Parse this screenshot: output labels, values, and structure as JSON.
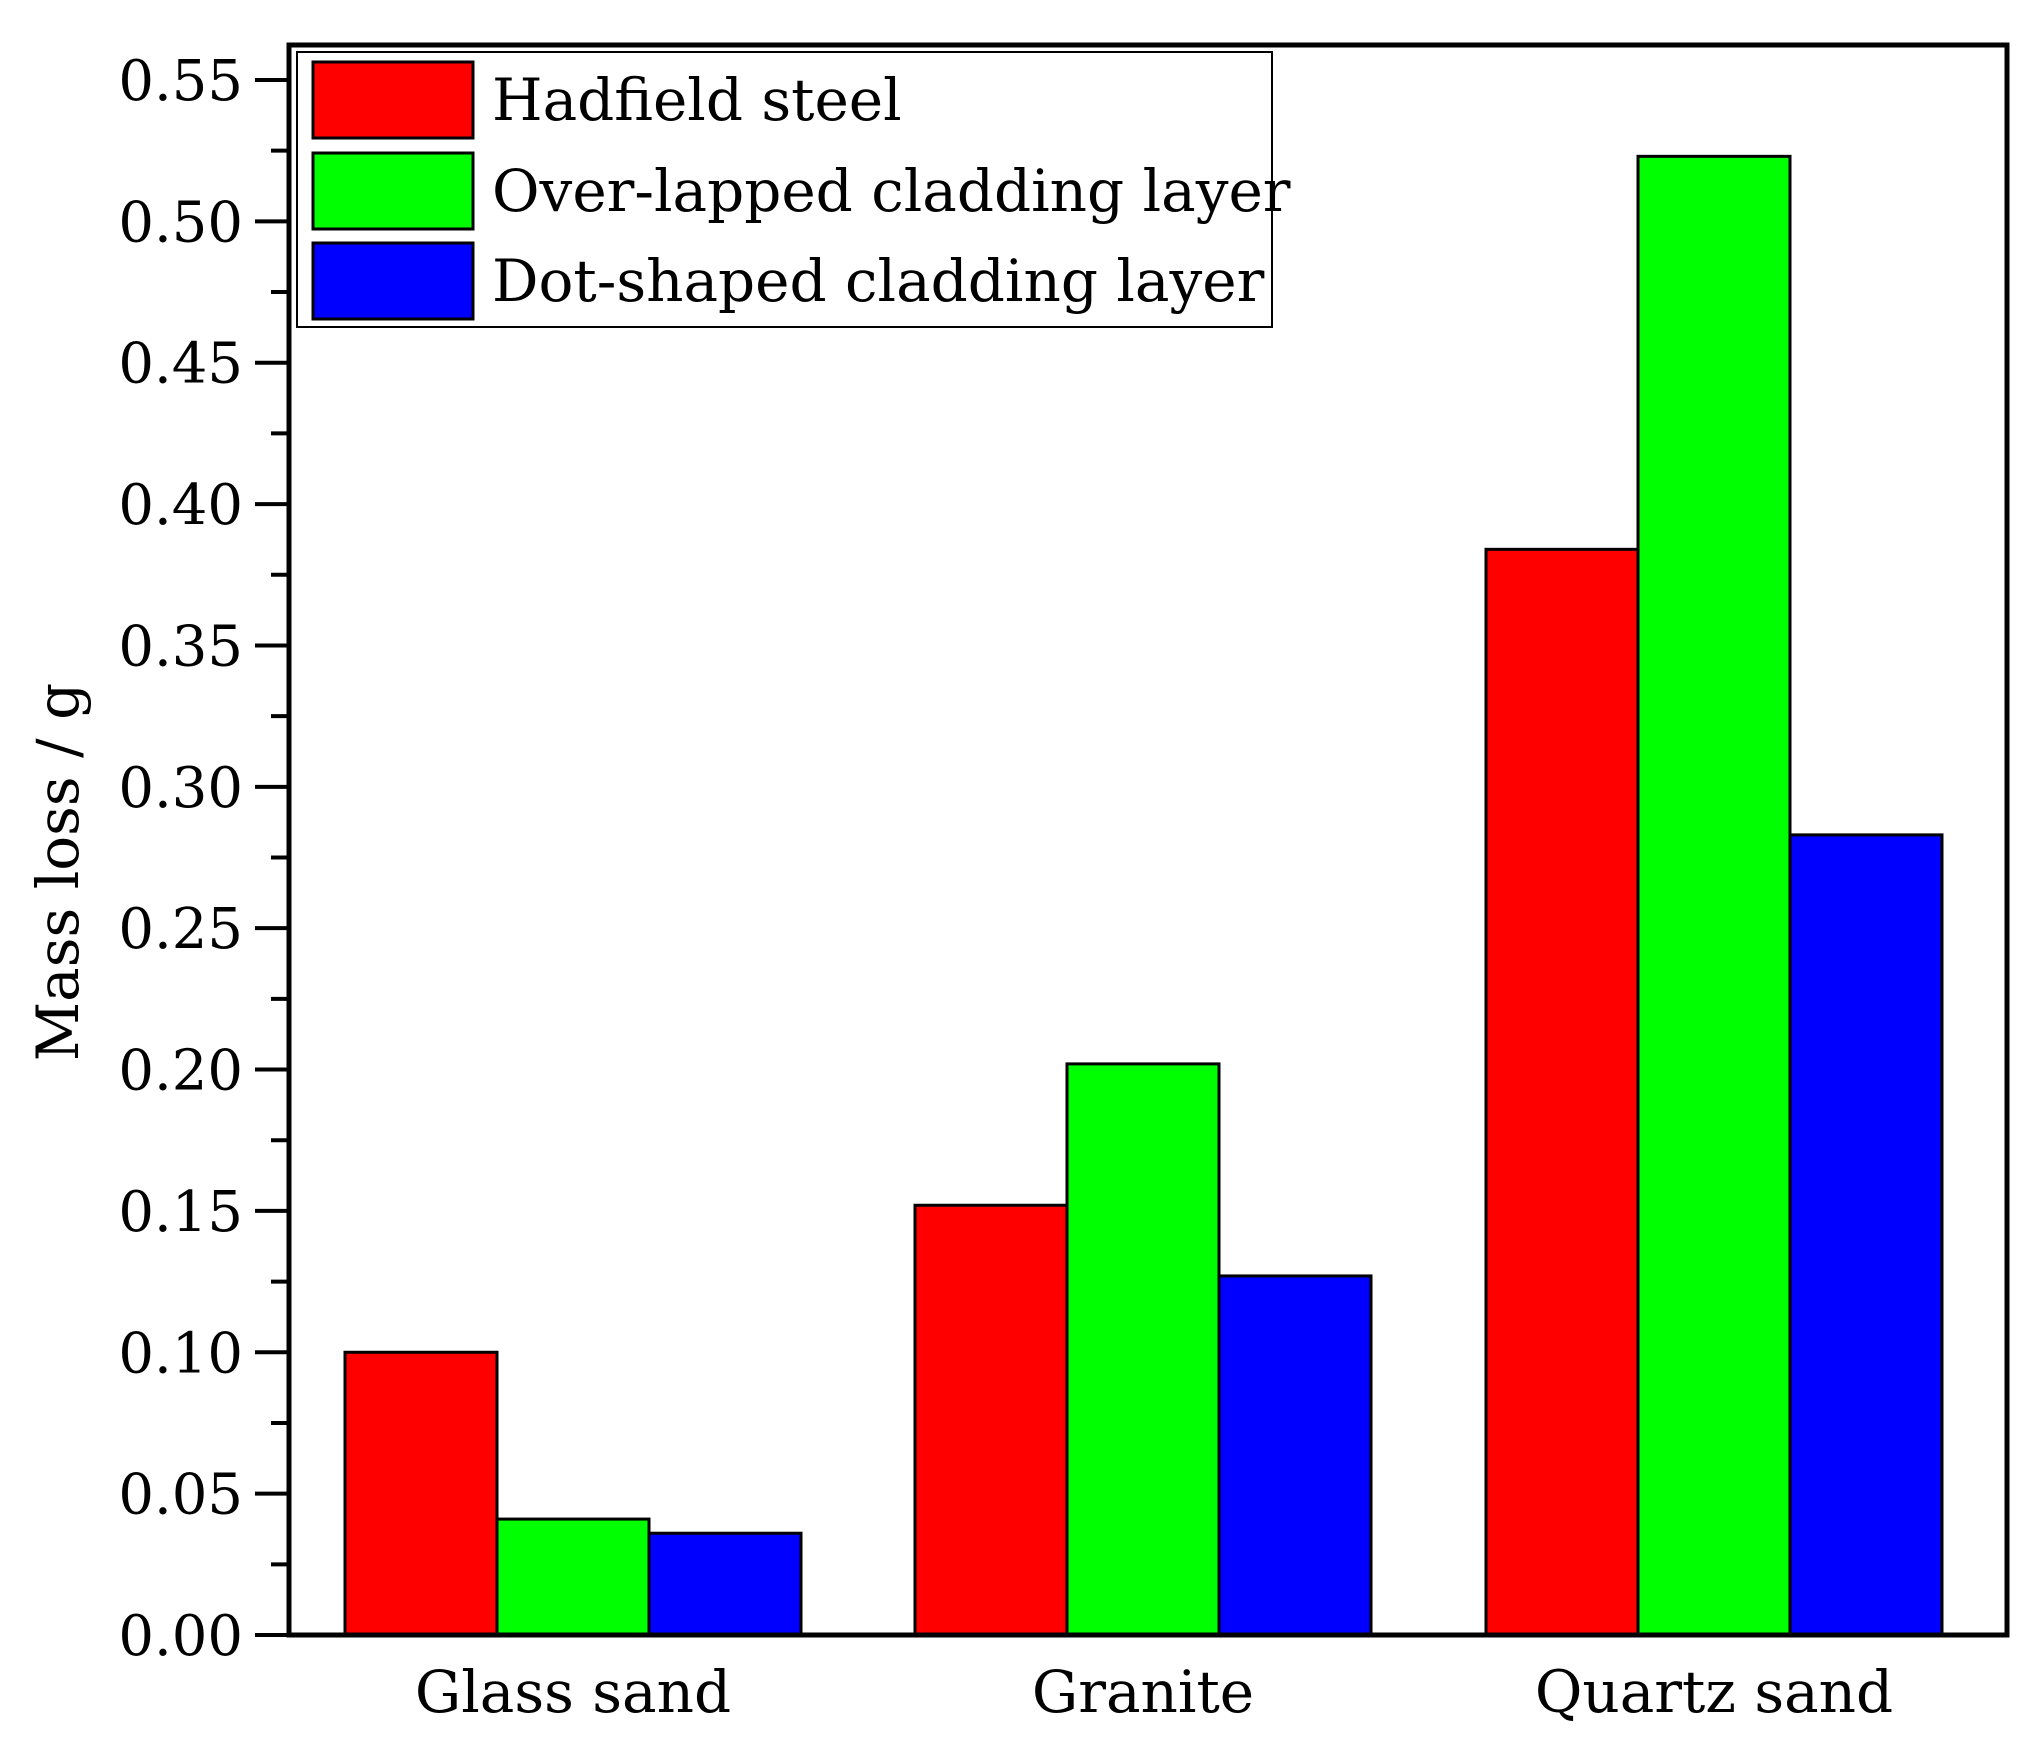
{
  "chart_data": {
    "type": "bar",
    "title": "",
    "xlabel": "",
    "ylabel": "Mass loss / g",
    "ylim": [
      0,
      0.55
    ],
    "yticks": [
      "0.00",
      "0.05",
      "0.10",
      "0.15",
      "0.20",
      "0.25",
      "0.30",
      "0.35",
      "0.40",
      "0.45",
      "0.50",
      "0.55"
    ],
    "categories": [
      "Glass sand",
      "Granite",
      "Quartz sand"
    ],
    "series": [
      {
        "name": "Hadfield steel",
        "color": "#ff0000",
        "values": [
          0.1,
          0.152,
          0.384
        ]
      },
      {
        "name": "Over-lapped cladding layer",
        "color": "#00ff00",
        "values": [
          0.041,
          0.202,
          0.523
        ]
      },
      {
        "name": "Dot-shaped cladding layer",
        "color": "#0000ff",
        "values": [
          0.036,
          0.127,
          0.283
        ]
      }
    ],
    "legend_position": "top-left",
    "grid": false
  }
}
